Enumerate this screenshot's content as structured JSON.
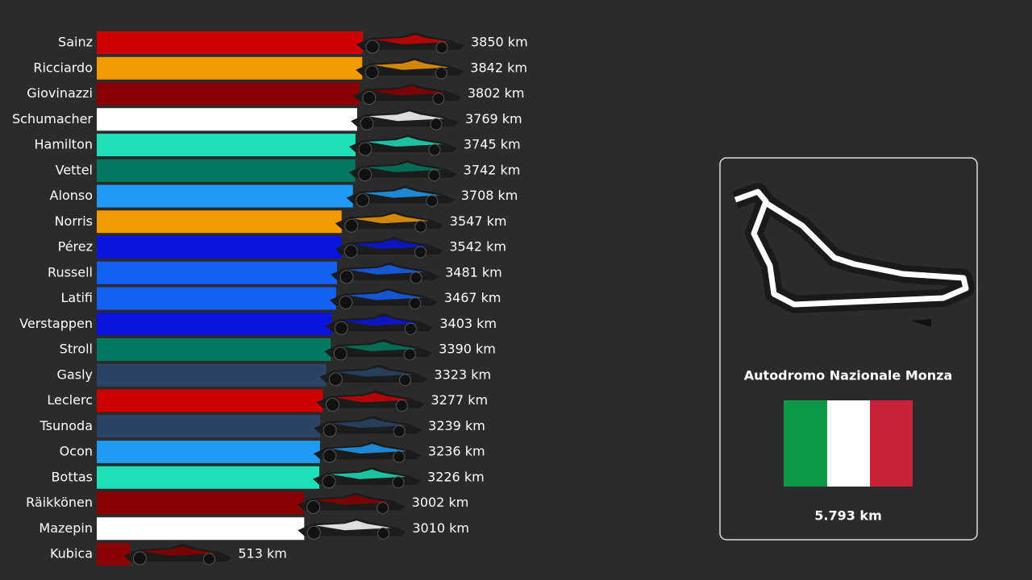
{
  "chart_data": {
    "type": "bar",
    "categories": [
      "Sainz",
      "Ricciardo",
      "Giovinazzi",
      "Schumacher",
      "Hamilton",
      "Vettel",
      "Alonso",
      "Norris",
      "Pérez",
      "Russell",
      "Latifi",
      "Verstappen",
      "Stroll",
      "Gasly",
      "Leclerc",
      "Tsunoda",
      "Ocon",
      "Bottas",
      "Räikkönen",
      "Mazepin",
      "Kubica"
    ],
    "values": [
      3850,
      3842,
      3802,
      3769,
      3745,
      3742,
      3708,
      3547,
      3542,
      3481,
      3467,
      3403,
      3390,
      3323,
      3277,
      3239,
      3236,
      3226,
      3002,
      3010,
      513
    ],
    "value_labels": [
      "3850 km",
      "3842 km",
      "3802 km",
      "3769 km",
      "3745 km",
      "3742 km",
      "3708 km",
      "3547 km",
      "3542 km",
      "3481 km",
      "3467 km",
      "3403 km",
      "3390 km",
      "3323 km",
      "3277 km",
      "3239 km",
      "3236 km",
      "3226 km",
      "3002 km",
      "3010 km",
      "513 km"
    ],
    "colors": [
      "#cc0000",
      "#f29a00",
      "#8b0000",
      "#ffffff",
      "#1de0b8",
      "#007a5e",
      "#1e9bf5",
      "#f29a00",
      "#0a14e0",
      "#1560f5",
      "#1560f5",
      "#0a14e0",
      "#007a5e",
      "#2b4466",
      "#cc0000",
      "#2b4466",
      "#1e9bf5",
      "#1de0b8",
      "#8b0000",
      "#ffffff",
      "#8b0000"
    ]
  },
  "panel": {
    "circuit": "Autodromo Nazionale Monza",
    "length": "5.793 km"
  }
}
